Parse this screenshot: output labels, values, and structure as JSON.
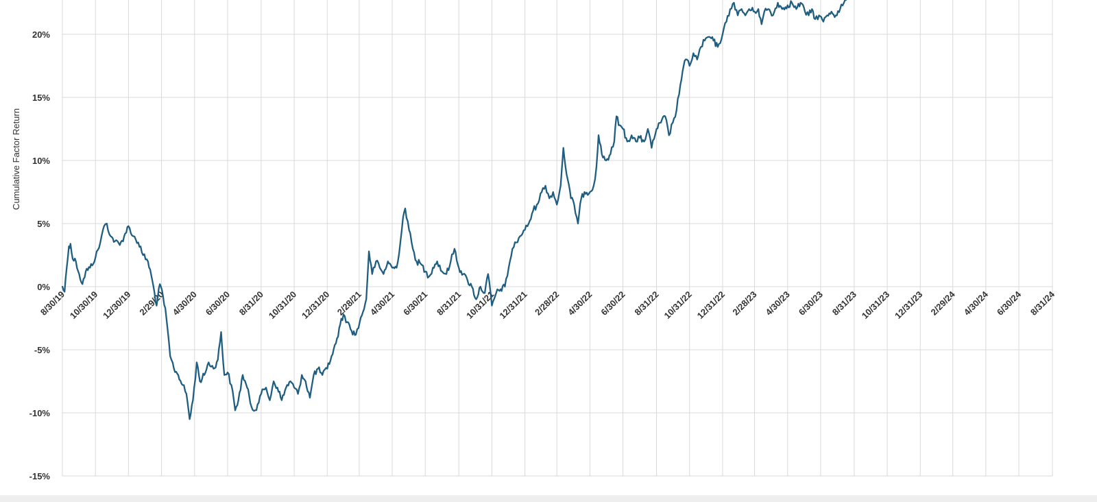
{
  "chart_data": {
    "type": "line",
    "title": "",
    "xlabel": "",
    "ylabel": "Cumulative Factor Return",
    "grid": true,
    "legend": "none",
    "y_unit": "%",
    "ylim": [
      -15,
      22
    ],
    "y_ticks": [
      -15,
      -10,
      -5,
      0,
      5,
      10,
      15,
      20
    ],
    "y_tick_labels": [
      "-15%",
      "-10%",
      "-5%",
      "0%",
      "5%",
      "10%",
      "15%",
      "20%"
    ],
    "x_range": [
      "2019-08-30",
      "2024-08-31"
    ],
    "x_ticks": [
      "2019-08-30",
      "2019-10-30",
      "2019-12-30",
      "2020-02-29",
      "2020-04-30",
      "2020-06-30",
      "2020-08-31",
      "2020-10-31",
      "2020-12-31",
      "2021-02-28",
      "2021-04-30",
      "2021-06-30",
      "2021-08-31",
      "2021-10-31",
      "2021-12-31",
      "2022-02-28",
      "2022-04-30",
      "2022-06-30",
      "2022-08-31",
      "2022-10-31",
      "2022-12-31",
      "2023-02-28",
      "2023-04-30",
      "2023-06-30",
      "2023-08-31",
      "2023-10-31",
      "2023-12-31",
      "2024-02-29",
      "2024-04-30",
      "2024-06-30",
      "2024-08-31"
    ],
    "x_tick_labels": [
      "8/30/19",
      "10/30/19",
      "12/30/19",
      "2/29/20",
      "4/30/20",
      "6/30/20",
      "8/31/20",
      "10/31/20",
      "12/31/20",
      "2/28/21",
      "4/30/21",
      "6/30/21",
      "8/31/21",
      "10/31/21",
      "12/31/21",
      "2/28/22",
      "4/30/22",
      "6/30/22",
      "8/31/22",
      "10/31/22",
      "12/31/22",
      "2/28/23",
      "4/30/23",
      "6/30/23",
      "8/31/23",
      "10/31/23",
      "12/31/23",
      "2/29/24",
      "4/30/24",
      "6/30/24",
      "8/31/24"
    ],
    "series": [
      {
        "color": "#1f5e80",
        "points": [
          [
            "2019-08-30",
            0.0
          ],
          [
            "2019-09-03",
            -0.4
          ],
          [
            "2019-09-07",
            1.5
          ],
          [
            "2019-09-11",
            3.2
          ],
          [
            "2019-09-14",
            3.4
          ],
          [
            "2019-09-18",
            2.2
          ],
          [
            "2019-09-24",
            2.0
          ],
          [
            "2019-09-30",
            1.0
          ],
          [
            "2019-10-06",
            0.2
          ],
          [
            "2019-10-12",
            1.2
          ],
          [
            "2019-10-20",
            1.5
          ],
          [
            "2019-10-30",
            2.3
          ],
          [
            "2019-11-08",
            3.5
          ],
          [
            "2019-11-15",
            4.8
          ],
          [
            "2019-11-20",
            5.0
          ],
          [
            "2019-11-27",
            4.0
          ],
          [
            "2019-12-05",
            3.6
          ],
          [
            "2019-12-14",
            3.3
          ],
          [
            "2019-12-22",
            4.0
          ],
          [
            "2019-12-30",
            4.8
          ],
          [
            "2020-01-08",
            4.0
          ],
          [
            "2020-01-17",
            3.5
          ],
          [
            "2020-01-26",
            2.5
          ],
          [
            "2020-02-04",
            2.0
          ],
          [
            "2020-02-12",
            0.5
          ],
          [
            "2020-02-20",
            -1.5
          ],
          [
            "2020-02-26",
            0.2
          ],
          [
            "2020-03-03",
            -0.8
          ],
          [
            "2020-03-09",
            -2.5
          ],
          [
            "2020-03-16",
            -5.5
          ],
          [
            "2020-03-23",
            -6.5
          ],
          [
            "2020-03-31",
            -7.0
          ],
          [
            "2020-04-08",
            -7.8
          ],
          [
            "2020-04-15",
            -8.5
          ],
          [
            "2020-04-21",
            -10.5
          ],
          [
            "2020-04-27",
            -9.0
          ],
          [
            "2020-05-04",
            -6.0
          ],
          [
            "2020-05-10",
            -7.5
          ],
          [
            "2020-05-18",
            -7.0
          ],
          [
            "2020-05-26",
            -6.0
          ],
          [
            "2020-06-04",
            -6.5
          ],
          [
            "2020-06-12",
            -5.8
          ],
          [
            "2020-06-18",
            -3.6
          ],
          [
            "2020-06-24",
            -7.0
          ],
          [
            "2020-06-30",
            -6.8
          ],
          [
            "2020-07-07",
            -7.8
          ],
          [
            "2020-07-14",
            -9.8
          ],
          [
            "2020-07-20",
            -9.0
          ],
          [
            "2020-07-28",
            -7.0
          ],
          [
            "2020-08-05",
            -8.0
          ],
          [
            "2020-08-13",
            -9.5
          ],
          [
            "2020-08-20",
            -9.8
          ],
          [
            "2020-08-31",
            -8.5
          ],
          [
            "2020-09-09",
            -8.0
          ],
          [
            "2020-09-16",
            -9.0
          ],
          [
            "2020-09-23",
            -7.5
          ],
          [
            "2020-09-30",
            -8.0
          ],
          [
            "2020-10-08",
            -9.0
          ],
          [
            "2020-10-16",
            -8.0
          ],
          [
            "2020-10-24",
            -7.5
          ],
          [
            "2020-10-31",
            -8.0
          ],
          [
            "2020-11-07",
            -8.5
          ],
          [
            "2020-11-14",
            -7.0
          ],
          [
            "2020-11-21",
            -7.5
          ],
          [
            "2020-11-29",
            -8.8
          ],
          [
            "2020-12-06",
            -7.0
          ],
          [
            "2020-12-14",
            -6.5
          ],
          [
            "2020-12-22",
            -7.0
          ],
          [
            "2020-12-31",
            -6.5
          ],
          [
            "2021-01-08",
            -5.5
          ],
          [
            "2021-01-16",
            -4.5
          ],
          [
            "2021-01-24",
            -3.0
          ],
          [
            "2021-01-30",
            -2.2
          ],
          [
            "2021-02-06",
            -2.8
          ],
          [
            "2021-02-14",
            -3.5
          ],
          [
            "2021-02-22",
            -3.8
          ],
          [
            "2021-03-01",
            -2.8
          ],
          [
            "2021-03-07",
            -2.0
          ],
          [
            "2021-03-13",
            -1.0
          ],
          [
            "2021-03-18",
            2.8
          ],
          [
            "2021-03-24",
            1.0
          ],
          [
            "2021-03-31",
            2.0
          ],
          [
            "2021-04-07",
            1.5
          ],
          [
            "2021-04-14",
            1.0
          ],
          [
            "2021-04-22",
            2.0
          ],
          [
            "2021-04-30",
            1.5
          ],
          [
            "2021-05-08",
            1.5
          ],
          [
            "2021-05-15",
            3.5
          ],
          [
            "2021-05-20",
            5.5
          ],
          [
            "2021-05-24",
            6.2
          ],
          [
            "2021-05-31",
            4.5
          ],
          [
            "2021-06-07",
            3.0
          ],
          [
            "2021-06-14",
            2.0
          ],
          [
            "2021-06-22",
            1.8
          ],
          [
            "2021-06-30",
            1.2
          ],
          [
            "2021-07-07",
            0.8
          ],
          [
            "2021-07-14",
            1.5
          ],
          [
            "2021-07-22",
            2.0
          ],
          [
            "2021-07-31",
            1.2
          ],
          [
            "2021-08-08",
            1.0
          ],
          [
            "2021-08-16",
            2.0
          ],
          [
            "2021-08-23",
            3.0
          ],
          [
            "2021-08-31",
            1.5
          ],
          [
            "2021-09-08",
            1.0
          ],
          [
            "2021-09-16",
            0.5
          ],
          [
            "2021-09-24",
            0.0
          ],
          [
            "2021-10-02",
            -1.0
          ],
          [
            "2021-10-10",
            0.0
          ],
          [
            "2021-10-18",
            -0.5
          ],
          [
            "2021-10-24",
            1.0
          ],
          [
            "2021-10-31",
            -1.5
          ],
          [
            "2021-11-08",
            -0.5
          ],
          [
            "2021-11-16",
            -0.2
          ],
          [
            "2021-11-24",
            0.0
          ],
          [
            "2021-12-01",
            1.5
          ],
          [
            "2021-12-08",
            3.0
          ],
          [
            "2021-12-15",
            3.5
          ],
          [
            "2021-12-22",
            4.0
          ],
          [
            "2021-12-31",
            4.5
          ],
          [
            "2022-01-07",
            5.0
          ],
          [
            "2022-01-15",
            6.0
          ],
          [
            "2022-01-22",
            6.5
          ],
          [
            "2022-01-31",
            7.5
          ],
          [
            "2022-02-07",
            8.0
          ],
          [
            "2022-02-14",
            7.0
          ],
          [
            "2022-02-21",
            7.5
          ],
          [
            "2022-02-28",
            6.5
          ],
          [
            "2022-03-07",
            8.0
          ],
          [
            "2022-03-12",
            11.0
          ],
          [
            "2022-03-16",
            9.5
          ],
          [
            "2022-03-20",
            8.5
          ],
          [
            "2022-03-26",
            7.0
          ],
          [
            "2022-04-01",
            6.5
          ],
          [
            "2022-04-08",
            5.0
          ],
          [
            "2022-04-14",
            7.0
          ],
          [
            "2022-04-20",
            7.5
          ],
          [
            "2022-04-30",
            7.5
          ],
          [
            "2022-05-07",
            8.0
          ],
          [
            "2022-05-12",
            9.5
          ],
          [
            "2022-05-16",
            12.0
          ],
          [
            "2022-05-22",
            10.5
          ],
          [
            "2022-05-30",
            10.0
          ],
          [
            "2022-06-07",
            10.5
          ],
          [
            "2022-06-14",
            11.5
          ],
          [
            "2022-06-18",
            13.5
          ],
          [
            "2022-06-24",
            12.8
          ],
          [
            "2022-06-30",
            12.5
          ],
          [
            "2022-07-08",
            11.5
          ],
          [
            "2022-07-16",
            12.0
          ],
          [
            "2022-07-24",
            11.5
          ],
          [
            "2022-07-31",
            11.8
          ],
          [
            "2022-08-08",
            11.5
          ],
          [
            "2022-08-15",
            12.5
          ],
          [
            "2022-08-22",
            11.0
          ],
          [
            "2022-08-31",
            12.5
          ],
          [
            "2022-09-08",
            13.0
          ],
          [
            "2022-09-16",
            13.5
          ],
          [
            "2022-09-23",
            12.0
          ],
          [
            "2022-09-30",
            13.0
          ],
          [
            "2022-10-07",
            14.0
          ],
          [
            "2022-10-14",
            16.0
          ],
          [
            "2022-10-20",
            17.5
          ],
          [
            "2022-10-26",
            18.0
          ],
          [
            "2022-10-31",
            17.5
          ],
          [
            "2022-11-07",
            18.5
          ],
          [
            "2022-11-14",
            18.0
          ],
          [
            "2022-11-21",
            19.0
          ],
          [
            "2022-11-28",
            19.5
          ],
          [
            "2022-12-06",
            19.8
          ],
          [
            "2022-12-14",
            19.5
          ],
          [
            "2022-12-22",
            19.0
          ],
          [
            "2022-12-31",
            20.0
          ],
          [
            "2023-01-07",
            21.0
          ],
          [
            "2023-01-14",
            22.0
          ],
          [
            "2023-01-21",
            22.5
          ],
          [
            "2023-01-28",
            21.5
          ],
          [
            "2023-02-04",
            22.0
          ],
          [
            "2023-02-11",
            21.5
          ],
          [
            "2023-02-18",
            22.0
          ],
          [
            "2023-02-28",
            21.8
          ],
          [
            "2023-03-07",
            22.0
          ],
          [
            "2023-03-13",
            20.8
          ],
          [
            "2023-03-18",
            21.8
          ],
          [
            "2023-03-25",
            22.0
          ],
          [
            "2023-04-03",
            21.5
          ],
          [
            "2023-04-12",
            22.5
          ],
          [
            "2023-04-20",
            22.0
          ],
          [
            "2023-04-30",
            22.3
          ],
          [
            "2023-05-08",
            22.5
          ],
          [
            "2023-05-16",
            22.0
          ],
          [
            "2023-05-24",
            22.5
          ],
          [
            "2023-06-01",
            21.8
          ],
          [
            "2023-06-08",
            21.5
          ],
          [
            "2023-06-14",
            22.0
          ],
          [
            "2023-06-20",
            21.2
          ],
          [
            "2023-06-27",
            21.5
          ],
          [
            "2023-07-05",
            21.0
          ],
          [
            "2023-07-12",
            21.5
          ],
          [
            "2023-07-20",
            21.8
          ],
          [
            "2023-07-28",
            21.5
          ],
          [
            "2023-08-05",
            22.0
          ],
          [
            "2023-08-12",
            22.5
          ],
          [
            "2023-08-18",
            22.8
          ]
        ]
      }
    ]
  }
}
